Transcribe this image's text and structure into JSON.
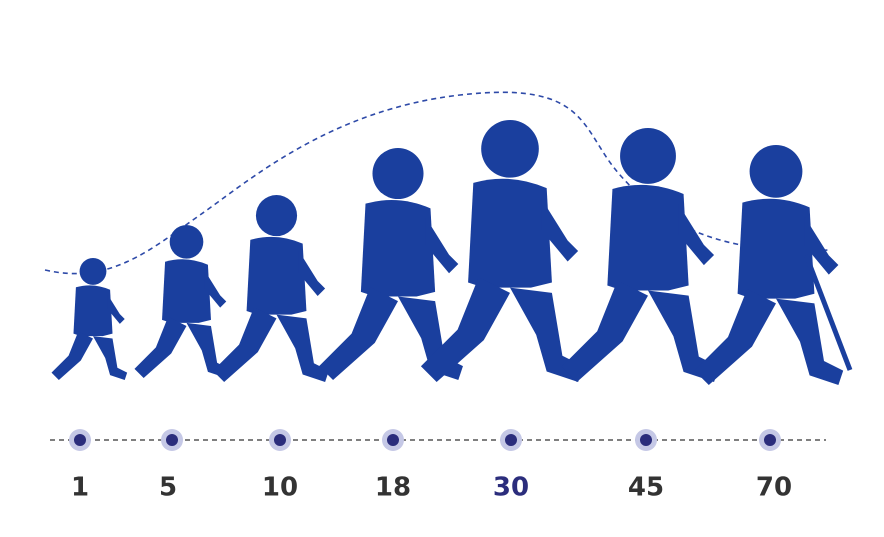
{
  "nodes": [
    {
      "label": "1",
      "color": "#333333"
    },
    {
      "label": "5",
      "color": "#333333"
    },
    {
      "label": "10",
      "color": "#333333"
    },
    {
      "label": "18",
      "color": "#333333"
    },
    {
      "label": "30",
      "color": "#2b2d7c"
    },
    {
      "label": "45",
      "color": "#333333"
    },
    {
      "label": "70",
      "color": "#333333"
    }
  ]
}
